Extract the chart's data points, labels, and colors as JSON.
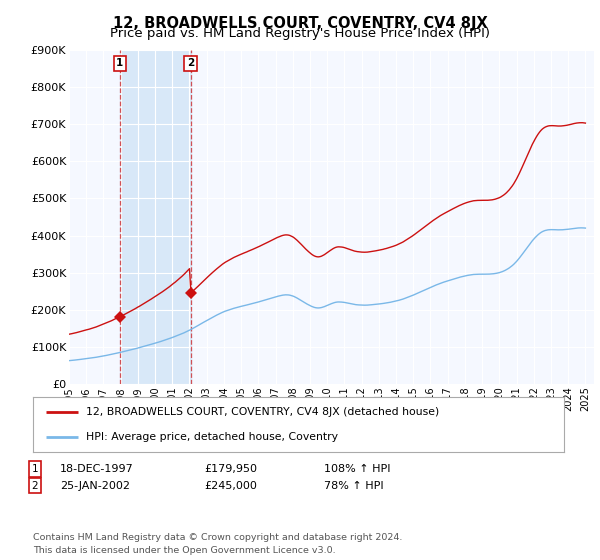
{
  "title": "12, BROADWELLS COURT, COVENTRY, CV4 8JX",
  "subtitle": "Price paid vs. HM Land Registry's House Price Index (HPI)",
  "ylim": [
    0,
    900000
  ],
  "yticks": [
    0,
    100000,
    200000,
    300000,
    400000,
    500000,
    600000,
    700000,
    800000,
    900000
  ],
  "ytick_labels": [
    "£0",
    "£100K",
    "£200K",
    "£300K",
    "£400K",
    "£500K",
    "£600K",
    "£700K",
    "£800K",
    "£900K"
  ],
  "background_color": "#ffffff",
  "plot_bg_color": "#f5f8ff",
  "grid_color": "#ffffff",
  "hpi_color": "#7ab8e8",
  "price_color": "#cc1111",
  "shade_color": "#d8e8f8",
  "sale1_year": 1997.958,
  "sale1_price": 179950,
  "sale2_year": 2002.07,
  "sale2_price": 245000,
  "legend_line1": "12, BROADWELLS COURT, COVENTRY, CV4 8JX (detached house)",
  "legend_line2": "HPI: Average price, detached house, Coventry",
  "table_row1": [
    "1",
    "18-DEC-1997",
    "£179,950",
    "108% ↑ HPI"
  ],
  "table_row2": [
    "2",
    "25-JAN-2002",
    "£245,000",
    "78% ↑ HPI"
  ],
  "footnote": "Contains HM Land Registry data © Crown copyright and database right 2024.\nThis data is licensed under the Open Government Licence v3.0.",
  "title_fontsize": 10.5,
  "subtitle_fontsize": 9.5
}
